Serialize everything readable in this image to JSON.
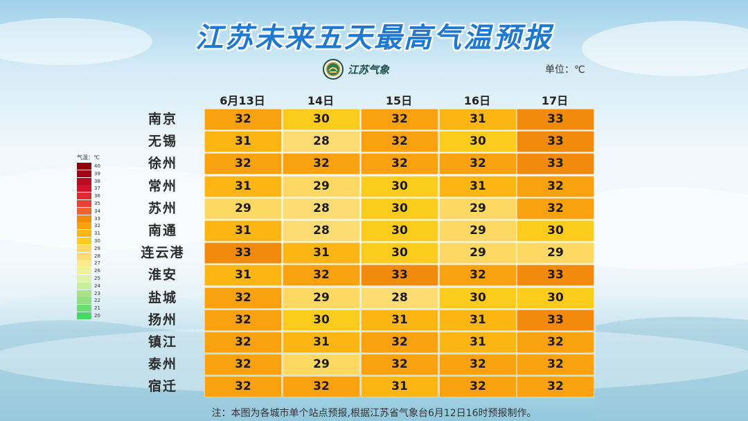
{
  "title": "江苏未来五天最高气温预报",
  "logo": {
    "text": "江苏气象",
    "icon": "jiangsu-weather-emblem"
  },
  "unit_label": "单位：℃",
  "days": [
    "6月13日",
    "14日",
    "15日",
    "16日",
    "17日"
  ],
  "cities": [
    "南京",
    "无锡",
    "徐州",
    "常州",
    "苏州",
    "南通",
    "连云港",
    "淮安",
    "盐城",
    "扬州",
    "镇江",
    "泰州",
    "宿迁"
  ],
  "table": [
    [
      "32",
      "30",
      "32",
      "31",
      "33"
    ],
    [
      "31",
      "28",
      "32",
      "30",
      "33"
    ],
    [
      "32",
      "32",
      "32",
      "32",
      "33"
    ],
    [
      "31",
      "29",
      "30",
      "31",
      "32"
    ],
    [
      "29",
      "28",
      "30",
      "29",
      "32"
    ],
    [
      "31",
      "28",
      "30",
      "29",
      "30"
    ],
    [
      "33",
      "31",
      "30",
      "29",
      "29"
    ],
    [
      "31",
      "32",
      "33",
      "32",
      "33"
    ],
    [
      "32",
      "29",
      "28",
      "30",
      "30"
    ],
    [
      "32",
      "30",
      "31",
      "31",
      "33"
    ],
    [
      "32",
      "31",
      "32",
      "31",
      "32"
    ],
    [
      "32",
      "29",
      "32",
      "32",
      "32"
    ],
    [
      "32",
      "32",
      "31",
      "32",
      "32"
    ]
  ],
  "color_scale": {
    "28": "#fddc74",
    "29": "#fdd862",
    "30": "#fccc1c",
    "31": "#fbb614",
    "32": "#f9a10e",
    "33": "#f28a0d"
  },
  "legend": {
    "title": "气温：℃",
    "levels": [
      {
        "label": "40",
        "color": "#8e0010"
      },
      {
        "label": "39",
        "color": "#a4031a"
      },
      {
        "label": "38",
        "color": "#bb0a22"
      },
      {
        "label": "37",
        "color": "#d0122b"
      },
      {
        "label": "36",
        "color": "#df2a32"
      },
      {
        "label": "35",
        "color": "#e84033"
      },
      {
        "label": "34",
        "color": "#ee6430"
      },
      {
        "label": "33",
        "color": "#f28a0d"
      },
      {
        "label": "32",
        "color": "#f9a10e"
      },
      {
        "label": "31",
        "color": "#fbb614"
      },
      {
        "label": "30",
        "color": "#fccc1c"
      },
      {
        "label": "29",
        "color": "#fdd862"
      },
      {
        "label": "28",
        "color": "#fddc74"
      },
      {
        "label": "27",
        "color": "#fde98c"
      },
      {
        "label": "26",
        "color": "#f4f09a"
      },
      {
        "label": "25",
        "color": "#dff2a6"
      },
      {
        "label": "24",
        "color": "#c7ee9f"
      },
      {
        "label": "23",
        "color": "#addf86"
      },
      {
        "label": "22",
        "color": "#91e07e"
      },
      {
        "label": "21",
        "color": "#6cdc73"
      },
      {
        "label": "20",
        "color": "#44d867"
      }
    ]
  },
  "note": "注：本图为各城市单个站点预报,根据江苏省气象台6月12日16时预报制作。"
}
